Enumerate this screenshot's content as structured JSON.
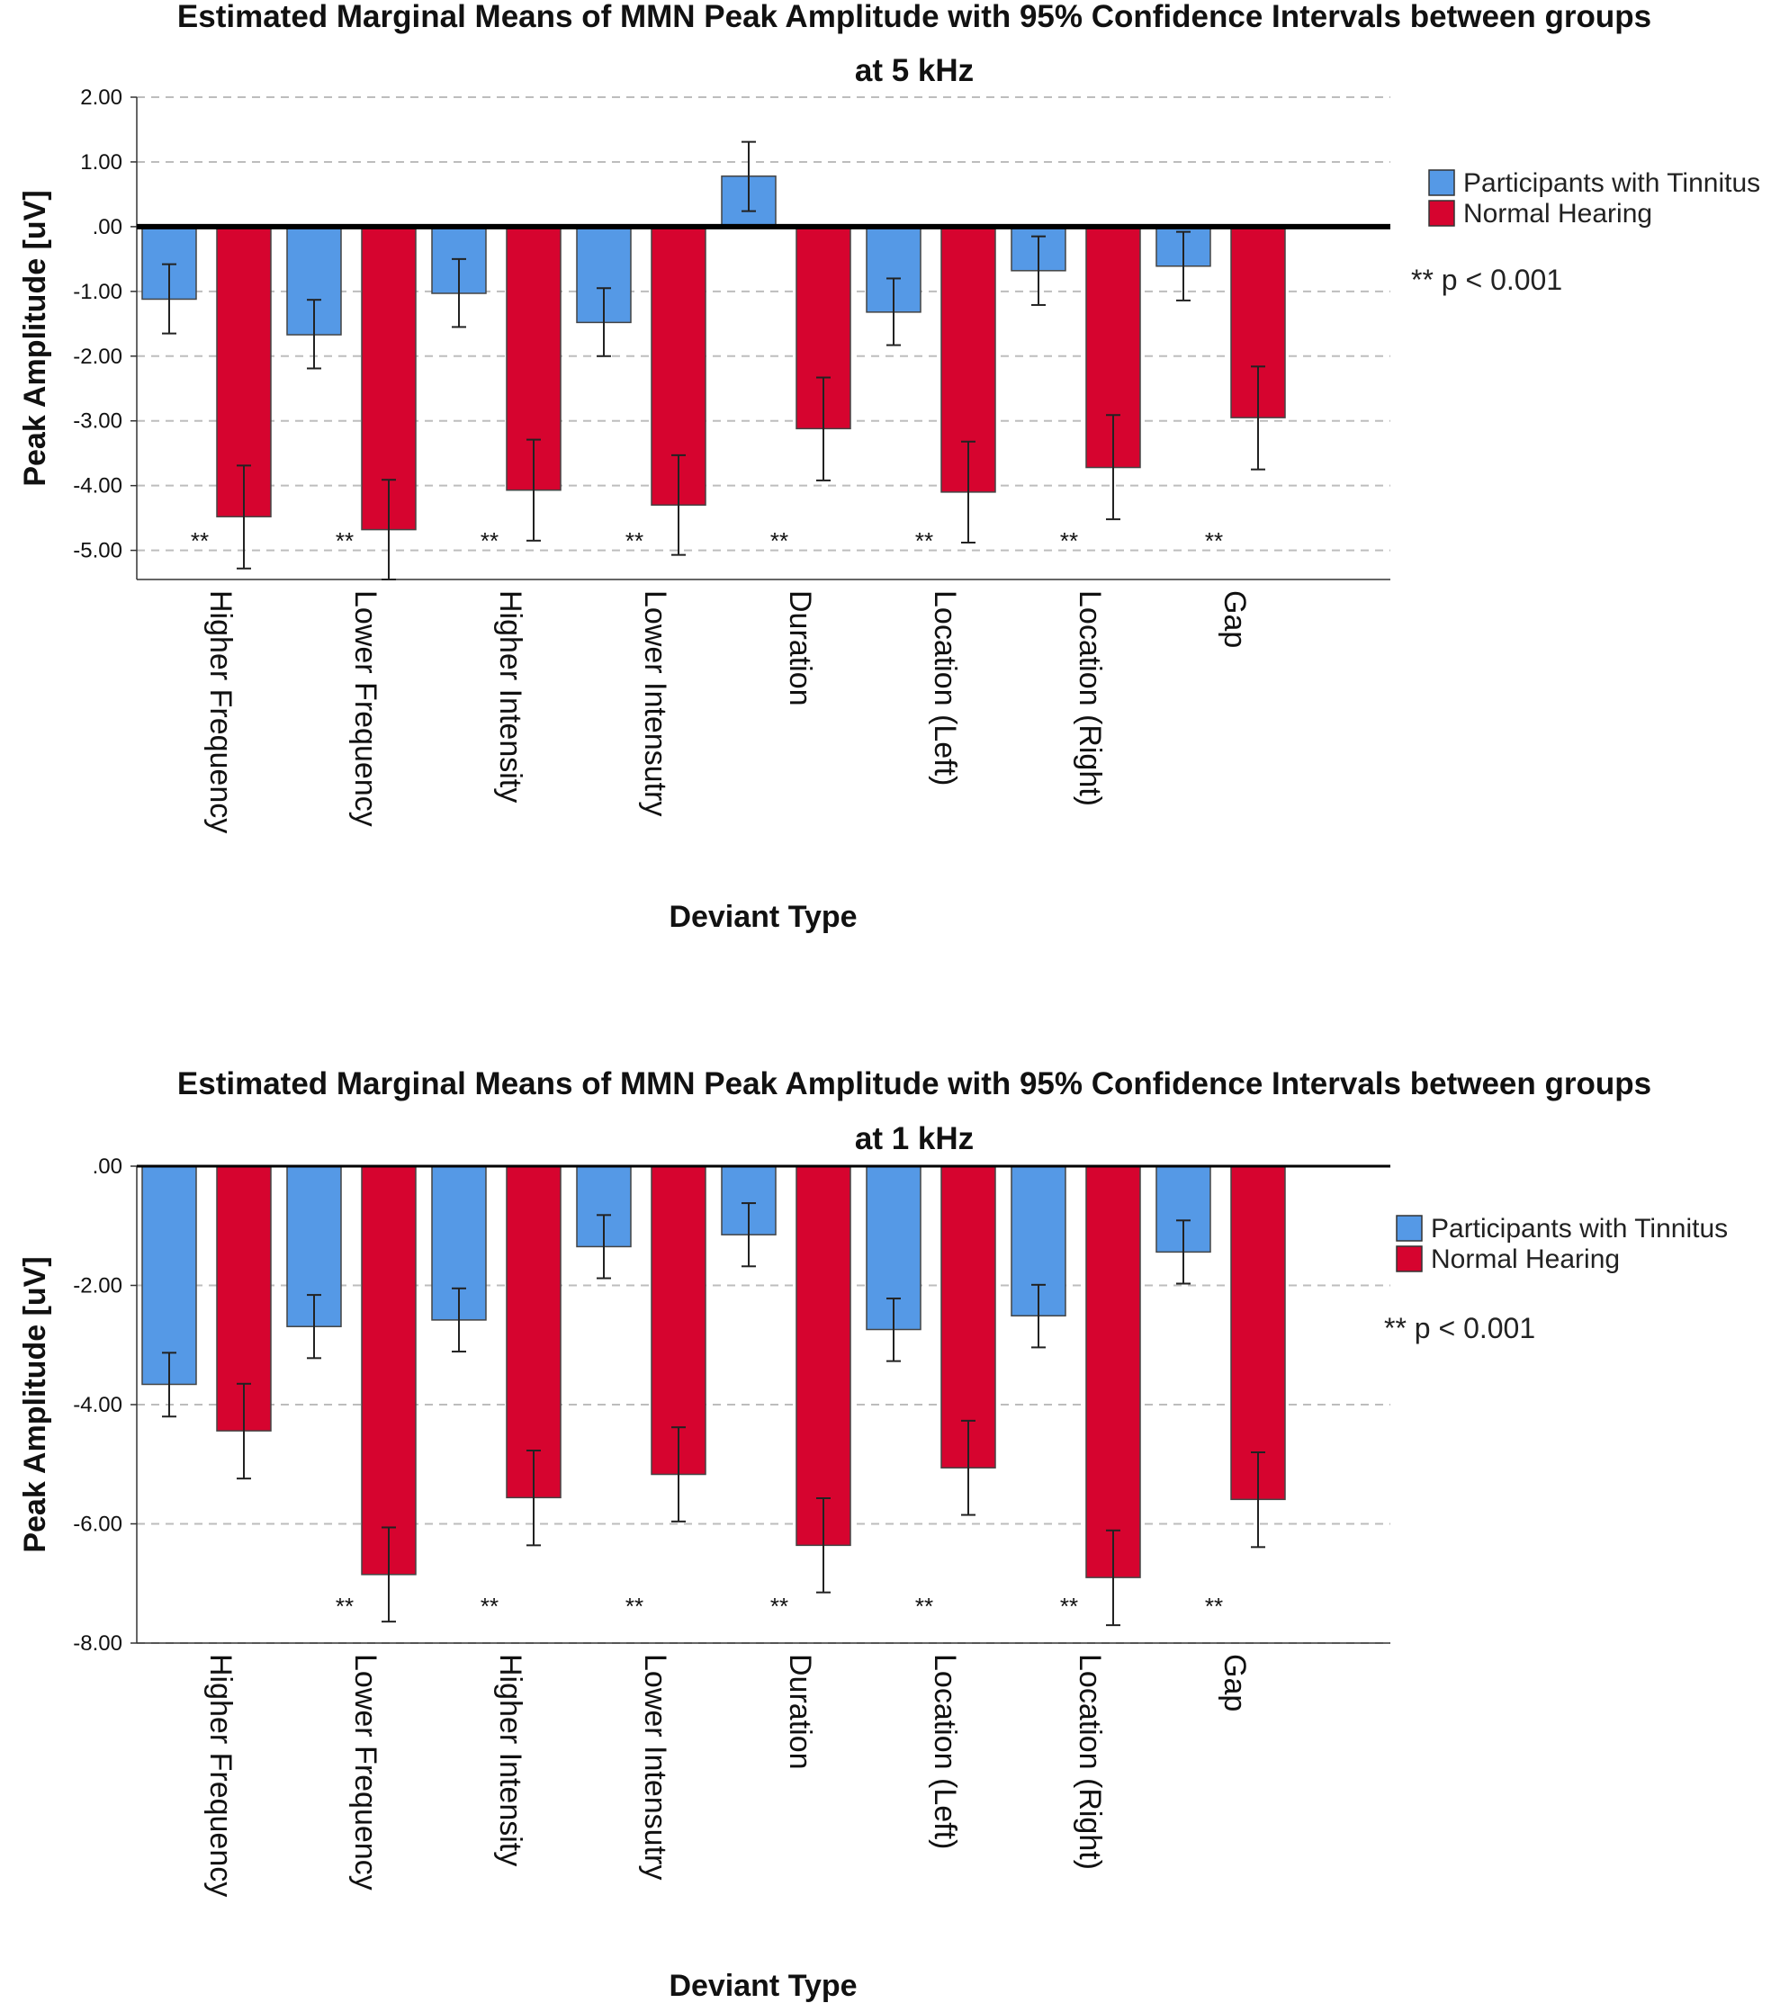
{
  "colors": {
    "tinnitus": "#5599e6",
    "normal": "#d6042f"
  },
  "chart_data": [
    {
      "type": "bar",
      "title": "Estimated Marginal Means of MMN Peak Amplitude with 95% Confidence Intervals between groups",
      "subtitle": "at 5 kHz",
      "xlabel": "Deviant Type",
      "ylabel": "Peak Amplitude [uV]",
      "ylim": [
        -5.45,
        2.0
      ],
      "yticks": [
        2,
        1,
        0,
        -1,
        -2,
        -3,
        -4,
        -5
      ],
      "ytick_labels": [
        "2.00",
        "1.00",
        ".00",
        "-1.00",
        "-2.00",
        "-3.00",
        "-4.00",
        "-5.00"
      ],
      "categories": [
        "Higher Frequency",
        "Lower Frequency",
        "Higher Intensity",
        "Lower Intensutry",
        "Duration",
        "Location (Left)",
        "Location (Right)",
        "Gap"
      ],
      "series": [
        {
          "name": "Participants with Tinnitus",
          "values": [
            -1.12,
            -1.67,
            -1.03,
            -1.48,
            0.78,
            -1.32,
            -0.68,
            -0.61
          ],
          "ci_low": [
            -1.65,
            -2.19,
            -1.55,
            -2.0,
            0.24,
            -1.83,
            -1.21,
            -1.14
          ],
          "ci_high": [
            -0.58,
            -1.13,
            -0.5,
            -0.95,
            1.31,
            -0.8,
            -0.15,
            -0.08
          ]
        },
        {
          "name": "Normal Hearing",
          "values": [
            -4.48,
            -4.68,
            -4.07,
            -4.3,
            -3.12,
            -4.1,
            -3.72,
            -2.95
          ],
          "ci_low": [
            -5.28,
            -5.45,
            -4.85,
            -5.07,
            -3.92,
            -4.88,
            -4.52,
            -3.75
          ],
          "ci_high": [
            -3.69,
            -3.91,
            -3.29,
            -3.53,
            -2.33,
            -3.32,
            -2.91,
            -2.16
          ]
        }
      ],
      "significance": [
        "**",
        "**",
        "**",
        "**",
        "**",
        "**",
        "**",
        "**"
      ],
      "legend": {
        "entries": [
          "Participants with Tinnitus",
          "Normal Hearing"
        ],
        "note": "** p < 0.001",
        "position": "right"
      },
      "grid": true
    },
    {
      "type": "bar",
      "title": "Estimated Marginal Means of MMN Peak Amplitude with 95% Confidence Intervals between groups",
      "subtitle": "at 1 kHz",
      "xlabel": "Deviant Type",
      "ylabel": "Peak Amplitude [uV]",
      "ylim": [
        -8.0,
        0.0
      ],
      "yticks": [
        0,
        -2,
        -4,
        -6,
        -8
      ],
      "ytick_labels": [
        ".00",
        "-2.00",
        "-4.00",
        "-6.00",
        "-8.00"
      ],
      "categories": [
        "Higher Frequency",
        "Lower Frequency",
        "Higher Intensity",
        "Lower Intensutry",
        "Duration",
        "Location (Left)",
        "Location (Right)",
        "Gap"
      ],
      "series": [
        {
          "name": "Participants with Tinnitus",
          "values": [
            -3.66,
            -2.69,
            -2.58,
            -1.35,
            -1.15,
            -2.74,
            -2.51,
            -1.44
          ],
          "ci_low": [
            -4.2,
            -3.22,
            -3.11,
            -1.88,
            -1.68,
            -3.27,
            -3.04,
            -1.97
          ],
          "ci_high": [
            -3.13,
            -2.16,
            -2.05,
            -0.82,
            -0.62,
            -2.22,
            -1.99,
            -0.91
          ]
        },
        {
          "name": "Normal Hearing",
          "values": [
            -4.44,
            -6.85,
            -5.56,
            -5.17,
            -6.36,
            -5.06,
            -6.9,
            -5.59
          ],
          "ci_low": [
            -5.24,
            -7.64,
            -6.36,
            -5.96,
            -7.15,
            -5.85,
            -7.7,
            -6.39
          ],
          "ci_high": [
            -3.65,
            -6.06,
            -4.77,
            -4.38,
            -5.57,
            -4.27,
            -6.11,
            -4.8
          ]
        }
      ],
      "significance": [
        "",
        "**",
        "**",
        "**",
        "**",
        "**",
        "**",
        "**"
      ],
      "legend": {
        "entries": [
          "Participants with Tinnitus",
          "Normal Hearing"
        ],
        "note": "** p < 0.001",
        "position": "right"
      },
      "grid": true
    }
  ]
}
